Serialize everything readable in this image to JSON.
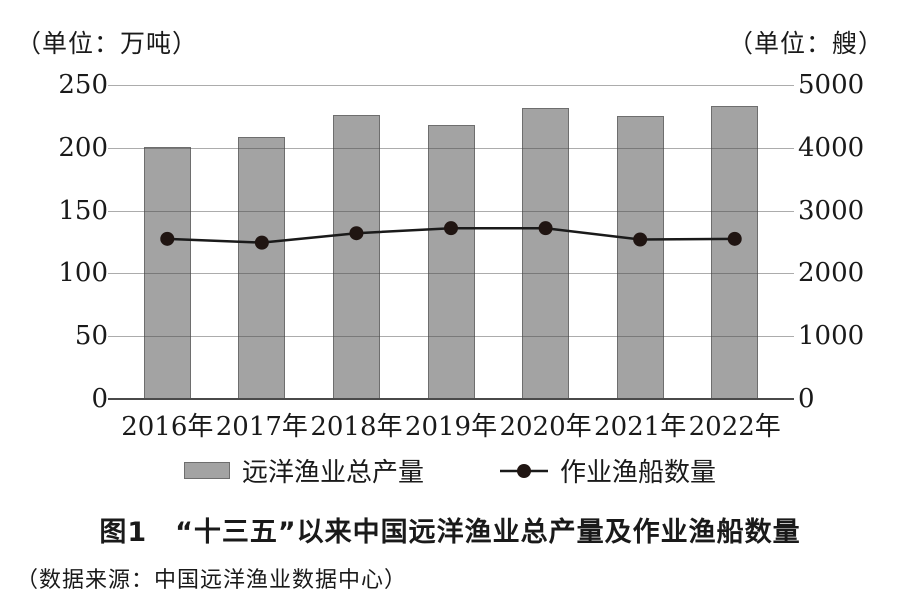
{
  "units": {
    "left": "（单位：万吨）",
    "right": "（单位：艘）"
  },
  "left_axis": {
    "ticks": [
      "250",
      "200",
      "150",
      "100",
      "50",
      "0"
    ]
  },
  "right_axis": {
    "ticks": [
      "5000",
      "4000",
      "3000",
      "2000",
      "1000",
      "0"
    ]
  },
  "chart_data": {
    "type": "bar",
    "subtype": "bar+line dual axis",
    "title": "图1　“十三五”以来中国远洋渔业总产量及作业渔船数量",
    "categories": [
      "2016年",
      "2017年",
      "2018年",
      "2019年",
      "2020年",
      "2021年",
      "2022年"
    ],
    "series": [
      {
        "name": "远洋渔业总产量",
        "type": "bar",
        "axis": "left",
        "unit": "万吨",
        "values": [
          201,
          209,
          226,
          218,
          232,
          225,
          233
        ]
      },
      {
        "name": "作业渔船数量",
        "type": "line",
        "axis": "right",
        "unit": "艘",
        "values": [
          2550,
          2490,
          2640,
          2720,
          2720,
          2540,
          2550
        ]
      }
    ],
    "left_ylabel": "（单位：万吨）",
    "right_ylabel": "（单位：艘）",
    "left_ylim": [
      0,
      250
    ],
    "right_ylim": [
      0,
      5000
    ],
    "left_tick_step": 50,
    "right_tick_step": 1000,
    "grid": true,
    "legend_position": "bottom"
  },
  "legend": [
    {
      "label": "远洋渔业总产量",
      "marker": "bar-swatch"
    },
    {
      "label": "作业渔船数量",
      "marker": "line-dot"
    }
  ],
  "caption": "图1　“十三五”以来中国远洋渔业总产量及作业渔船数量",
  "source": "（数据来源：中国远洋渔业数据中心）",
  "colors": {
    "bar_fill": "#a3a3a3",
    "bar_border": "#6e6e6e",
    "grid": "rgba(70,70,70,0.45)",
    "axis": "#4a4a4a",
    "line": "#1a1a1a",
    "dot": "#201512",
    "text": "#1a1a1a"
  }
}
